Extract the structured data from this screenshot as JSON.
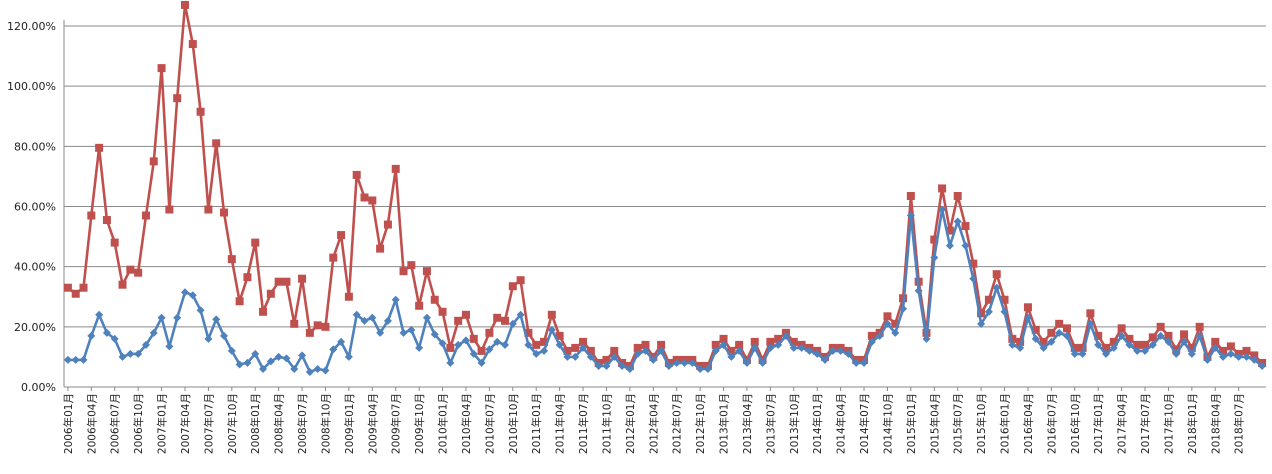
{
  "chart_data": {
    "type": "line",
    "title": "",
    "xlabel": "",
    "ylabel": "",
    "ylim": [
      0,
      120
    ],
    "y_ticks": [
      "0.00%",
      "20.00%",
      "40.00%",
      "60.00%",
      "80.00%",
      "100.00%",
      "120.00%"
    ],
    "y_tick_values": [
      0,
      20,
      40,
      60,
      80,
      100,
      120
    ],
    "x_tick_labels": [
      "2006年01月",
      "2006年04月",
      "2006年07月",
      "2006年10月",
      "2007年01月",
      "2007年04月",
      "2007年07月",
      "2007年10月",
      "2008年01月",
      "2008年04月",
      "2008年07月",
      "2008年10月",
      "2009年01月",
      "2009年04月",
      "2009年07月",
      "2009年10月",
      "2010年01月",
      "2010年04月",
      "2010年07月",
      "2010年10月",
      "2011年01月",
      "2011年04月",
      "2011年07月",
      "2011年10月",
      "2012年01月",
      "2012年04月",
      "2012年07月",
      "2012年10月",
      "2013年01月",
      "2013年04月",
      "2013年07月",
      "2013年10月",
      "2014年01月",
      "2014年04月",
      "2014年07月",
      "2014年10月",
      "2015年01月",
      "2015年04月",
      "2015年07月",
      "2015年10月",
      "2016年01月",
      "2016年04月",
      "2016年07月",
      "2016年10月",
      "2017年01月",
      "2017年04月",
      "2017年07月",
      "2017年10月",
      "2018年01月",
      "2018年04月",
      "2018年07月"
    ],
    "grid": true,
    "legend": "none",
    "series": [
      {
        "color": "#c0504d",
        "marker": "square",
        "values": [
          33,
          31,
          33,
          57,
          79.5,
          55.5,
          48,
          34,
          39,
          38,
          57,
          75,
          106,
          59,
          96,
          127,
          114,
          91.5,
          59,
          81,
          58,
          42.5,
          28.5,
          36.5,
          48,
          25,
          31,
          35,
          35,
          21,
          36,
          18,
          20.5,
          20,
          43,
          50.5,
          30,
          70.5,
          63,
          62,
          46,
          54,
          72.5,
          38.5,
          40.5,
          27,
          38.5,
          29,
          25,
          13,
          22,
          24,
          16,
          12,
          18,
          23,
          22,
          33.5,
          35.5,
          18,
          14,
          15,
          24,
          17,
          12,
          13,
          15,
          12,
          8,
          9,
          12,
          8,
          7,
          13,
          14,
          10,
          14,
          8,
          9,
          9,
          9,
          7,
          7,
          14,
          16,
          12,
          14,
          9,
          15,
          9,
          15,
          16,
          18,
          15,
          14,
          13,
          12,
          10,
          13,
          13,
          12,
          9,
          9,
          17,
          18,
          23.5,
          21,
          29.5,
          63.5,
          35,
          18,
          49,
          66,
          52,
          63.5,
          53.5,
          41,
          24.5,
          29,
          37.5,
          29,
          16,
          15,
          26.5,
          19,
          15,
          18,
          21,
          19.5,
          13,
          13,
          24.5,
          17,
          13,
          15,
          19.5,
          16,
          14,
          14,
          16.5,
          20,
          17,
          12.5,
          17.5,
          13,
          20,
          10,
          15,
          12,
          13.5,
          11,
          12,
          10.5,
          8
        ]
      },
      {
        "color": "#4f81bd",
        "marker": "diamond",
        "values": [
          9,
          9,
          9,
          17,
          24,
          18,
          16,
          10,
          11,
          11,
          14,
          18,
          23,
          13.5,
          23,
          31.5,
          30.5,
          25.5,
          16,
          22.5,
          17,
          12,
          7.5,
          8,
          11,
          6,
          8.5,
          10,
          9.5,
          6,
          10.5,
          5,
          6,
          5.5,
          12.5,
          15,
          10,
          24,
          22,
          23,
          18,
          22,
          29,
          18,
          19,
          13,
          23,
          17.5,
          14.5,
          8,
          14,
          15.5,
          11,
          8,
          12.5,
          15,
          14,
          21,
          24,
          14,
          11,
          12,
          19,
          14,
          10,
          10,
          13,
          10,
          7,
          7,
          10,
          7,
          6,
          11,
          12,
          9,
          12,
          7,
          8,
          8,
          8,
          6,
          6,
          12,
          14,
          10,
          12,
          8,
          13,
          8,
          13,
          14,
          17,
          13,
          13,
          12,
          11,
          9,
          12,
          12,
          11,
          8,
          8,
          15,
          17,
          21,
          18,
          26,
          57,
          32,
          16,
          43,
          59,
          47,
          55,
          47,
          36,
          21,
          25,
          33,
          25,
          14,
          13,
          23,
          16,
          13,
          15,
          18,
          17,
          11,
          11,
          21,
          14,
          11,
          13,
          17,
          14,
          12,
          12,
          14,
          17,
          15,
          11,
          15,
          11,
          17,
          9,
          13,
          10,
          11,
          10,
          10,
          9,
          7
        ]
      }
    ]
  }
}
